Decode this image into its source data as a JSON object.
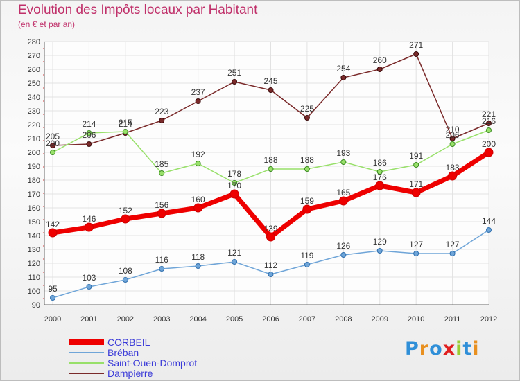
{
  "chart_data": {
    "type": "line",
    "title": "Evolution des Impôts locaux par Habitant",
    "subtitle": "(en € et par an)",
    "x": [
      "2000",
      "2001",
      "2002",
      "2003",
      "2004",
      "2005",
      "2006",
      "2007",
      "2008",
      "2009",
      "2010",
      "2011",
      "2012"
    ],
    "ylim": [
      90,
      280
    ],
    "yticks": [
      90,
      100,
      110,
      120,
      130,
      140,
      150,
      160,
      170,
      180,
      190,
      200,
      210,
      220,
      230,
      240,
      250,
      260,
      270,
      280
    ],
    "grid": true,
    "legend_position": "bottom-left",
    "series": [
      {
        "name": "CORBEIL",
        "color": "#ee0000",
        "values": [
          142,
          146,
          152,
          156,
          160,
          170,
          139,
          159,
          165,
          176,
          171,
          183,
          200
        ]
      },
      {
        "name": "Bréban",
        "color": "#6fa5d8",
        "values": [
          95,
          103,
          108,
          116,
          118,
          121,
          112,
          119,
          126,
          129,
          127,
          127,
          144
        ]
      },
      {
        "name": "Saint-Ouen-Domprot",
        "color": "#98e06a",
        "values": [
          200,
          214,
          215,
          185,
          192,
          178,
          188,
          188,
          193,
          186,
          191,
          206,
          216
        ]
      },
      {
        "name": "Dampierre",
        "color": "#7a2a2a",
        "values": [
          205,
          206,
          214,
          223,
          237,
          251,
          245,
          225,
          254,
          260,
          271,
          210,
          221
        ]
      }
    ]
  },
  "logo": {
    "letters": [
      "P",
      "r",
      "o",
      "x",
      "i",
      "t",
      "i"
    ],
    "colors": [
      "#2f8fd8",
      "#e89020",
      "#2f8fd8",
      "#e02020",
      "#9acd32",
      "#2f8fd8",
      "#e89020"
    ]
  }
}
